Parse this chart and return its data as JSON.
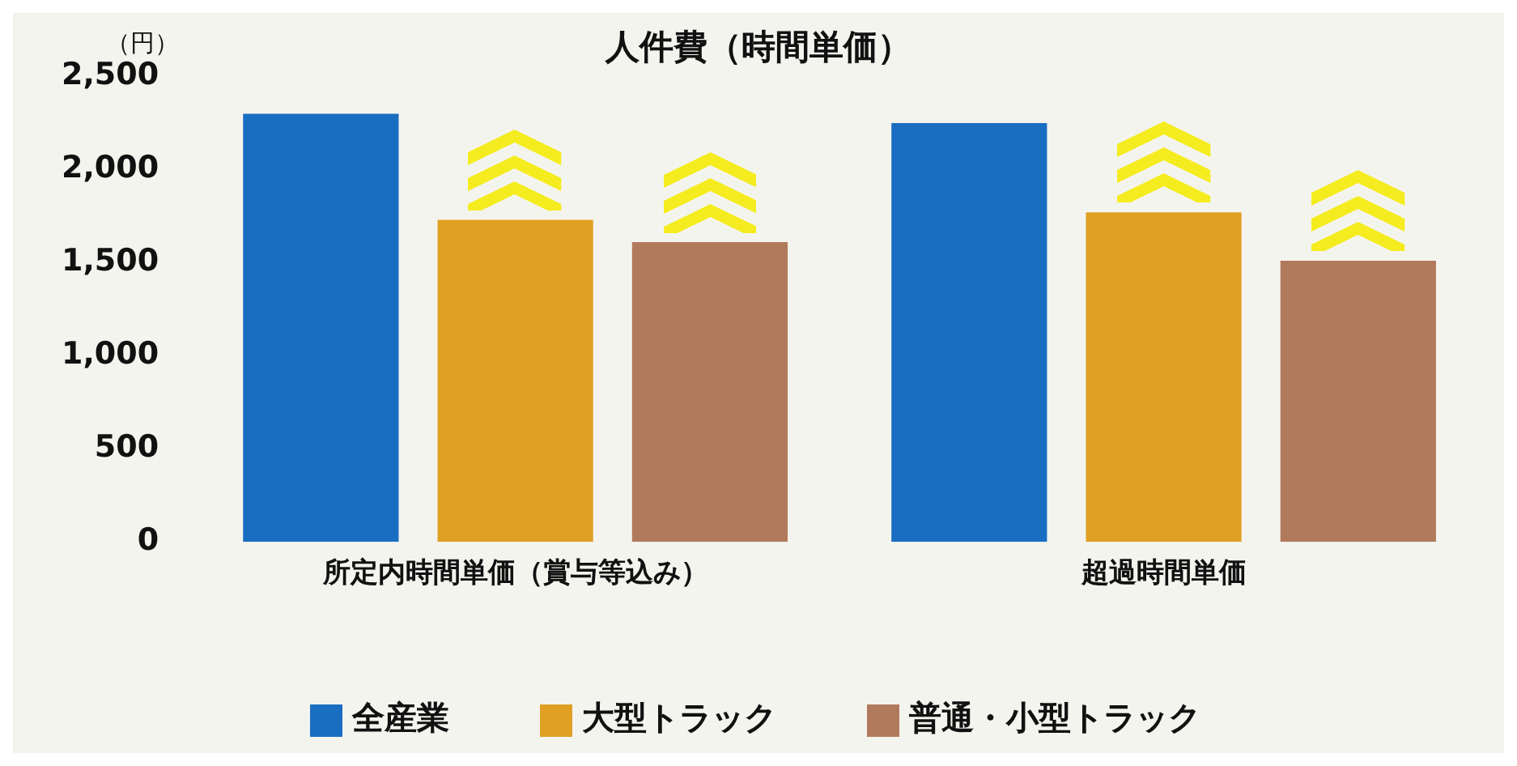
{
  "chart_data": {
    "type": "bar",
    "title": "人件費（時間単価）",
    "ylabel": "（円）",
    "categories": [
      "所定内時間単価（賞与等込み）",
      "超過時間単価"
    ],
    "series": [
      {
        "name": "全産業",
        "color": "#1a6ec2",
        "values": [
          2300,
          2250
        ]
      },
      {
        "name": "大型トラック",
        "color": "#e0a024",
        "values": [
          1730,
          1770
        ]
      },
      {
        "name": "普通・小型トラック",
        "color": "#b27a5c",
        "values": [
          1610,
          1510
        ]
      }
    ],
    "ylim": [
      0,
      2500
    ],
    "yticks": [
      0,
      500,
      {
        "value": 1000,
        "label": "1,000"
      },
      {
        "value": 1500,
        "label": "1,500"
      },
      {
        "value": 2000,
        "label": "2,000"
      },
      {
        "value": 2500,
        "label": "2,500"
      }
    ],
    "grid": false,
    "legend": "bottom"
  }
}
